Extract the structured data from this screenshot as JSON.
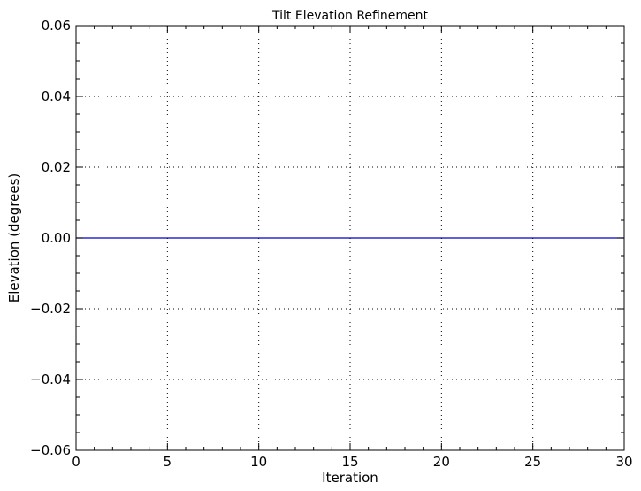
{
  "chart_data": {
    "type": "line",
    "title": "Tilt Elevation Refinement",
    "xlabel": "Iteration",
    "ylabel": "Elevation (degrees)",
    "xlim": [
      0,
      30
    ],
    "ylim": [
      -0.06,
      0.06
    ],
    "xticks": [
      "0",
      "5",
      "10",
      "15",
      "20",
      "25",
      "30"
    ],
    "yticks": [
      "−0.06",
      "−0.04",
      "−0.02",
      "0.00",
      "0.02",
      "0.04",
      "0.06"
    ],
    "grid": true,
    "series": [
      {
        "color": "#0000cc",
        "x": [
          0,
          1,
          2,
          3,
          4,
          5,
          6,
          7,
          8,
          9,
          10,
          11,
          12,
          13,
          14,
          15,
          16,
          17,
          18,
          19,
          20,
          21,
          22,
          23,
          24,
          25,
          26,
          27,
          28,
          29,
          30
        ],
        "y": [
          0,
          0,
          0,
          0,
          0,
          0,
          0,
          0,
          0,
          0,
          0,
          0,
          0,
          0,
          0,
          0,
          0,
          0,
          0,
          0,
          0,
          0,
          0,
          0,
          0,
          0,
          0,
          0,
          0,
          0,
          0
        ]
      }
    ]
  }
}
